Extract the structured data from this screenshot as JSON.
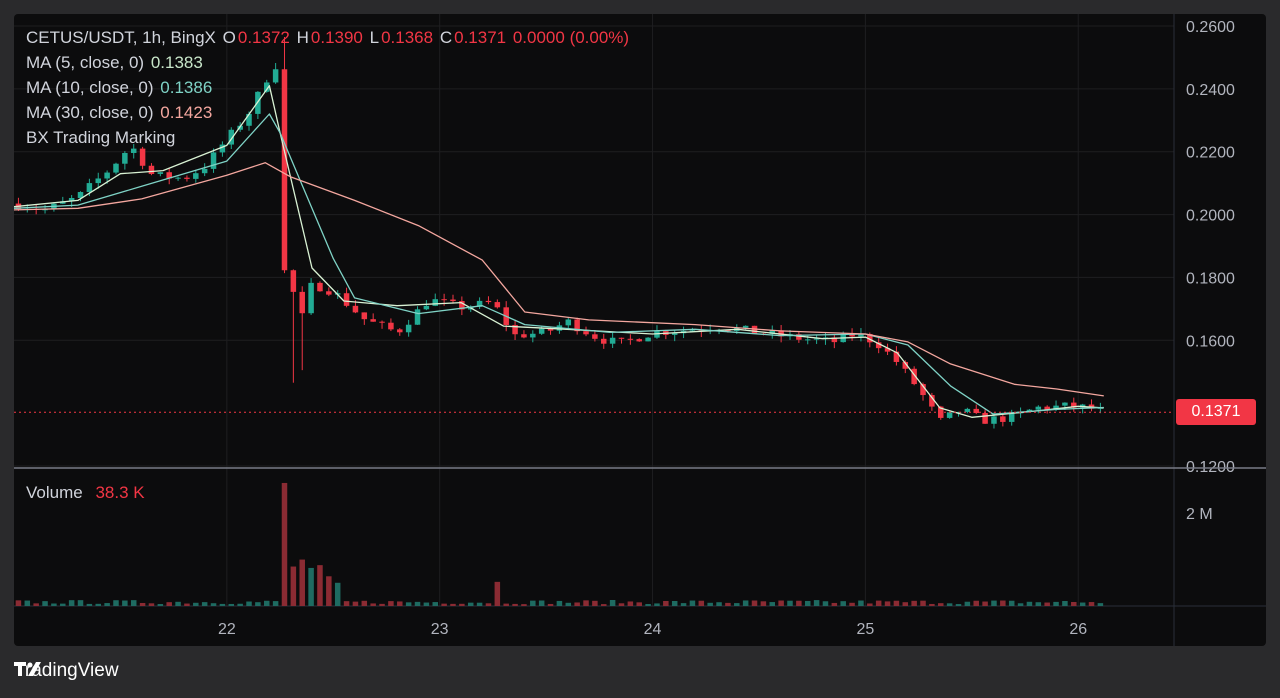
{
  "header": {
    "symbol": "CETUS/USDT, 1h, BingX",
    "o_label": "O",
    "o_value": "0.1372",
    "h_label": "H",
    "h_value": "0.1390",
    "l_label": "L",
    "l_value": "0.1368",
    "c_label": "C",
    "c_value": "0.1371",
    "change": "0.0000 (0.00%)"
  },
  "indicators": [
    {
      "label": "MA (5, close, 0)",
      "value": "0.1383",
      "color": "#c8e6c9"
    },
    {
      "label": "MA (10, close, 0)",
      "value": "0.1386",
      "color": "#7fd3c6"
    },
    {
      "label": "MA (30, close, 0)",
      "value": "0.1423",
      "color": "#f4a79f"
    },
    {
      "label": "BX Trading Marking",
      "value": "",
      "color": "#d1d4dc"
    }
  ],
  "volume_pane": {
    "label": "Volume",
    "value": "38.3 K"
  },
  "last_price": "0.1371",
  "brand": "TradingView",
  "colors": {
    "up": "#22ab94",
    "down": "#f23645",
    "ma5": "#d9f2d4",
    "ma10": "#7fd3c6",
    "ma30": "#f4a79f",
    "grid": "#1e1e20"
  },
  "chart_data": {
    "type": "candlestick",
    "interval": "1h",
    "price_axis": {
      "ticks": [
        0.26,
        0.24,
        0.22,
        0.2,
        0.18,
        0.16,
        0.12
      ],
      "tick_labels": [
        "0.2600",
        "0.2400",
        "0.2200",
        "0.2000",
        "0.1800",
        "0.1600",
        "0.1200"
      ],
      "range": [
        0.12,
        0.26
      ]
    },
    "volume_axis": {
      "ticks": [
        2000000
      ],
      "tick_labels": [
        "2 M"
      ],
      "range": [
        0,
        2800000
      ]
    },
    "x_axis": {
      "day_ticks": [
        22,
        23,
        24,
        25,
        26
      ],
      "tick_labels": [
        "22",
        "23",
        "24",
        "25",
        "26"
      ],
      "start_day": 21.0,
      "end_day": 26.45
    },
    "candle_close_anchors": [
      {
        "t": 21.0,
        "p": 0.2035
      },
      {
        "t": 21.15,
        "p": 0.2015
      },
      {
        "t": 21.3,
        "p": 0.2055
      },
      {
        "t": 21.45,
        "p": 0.2145
      },
      {
        "t": 21.55,
        "p": 0.222
      },
      {
        "t": 21.65,
        "p": 0.2125
      },
      {
        "t": 21.8,
        "p": 0.2115
      },
      {
        "t": 21.9,
        "p": 0.2155
      },
      {
        "t": 22.0,
        "p": 0.224
      },
      {
        "t": 22.1,
        "p": 0.232
      },
      {
        "t": 22.22,
        "p": 0.2475
      },
      {
        "t": 22.25,
        "p": 0.2475
      },
      {
        "t": 22.27,
        "p": 0.182
      },
      {
        "t": 22.3,
        "p": 0.178
      },
      {
        "t": 22.35,
        "p": 0.1665
      },
      {
        "t": 22.4,
        "p": 0.178
      },
      {
        "t": 22.5,
        "p": 0.1755
      },
      {
        "t": 22.65,
        "p": 0.1665
      },
      {
        "t": 22.8,
        "p": 0.1625
      },
      {
        "t": 22.95,
        "p": 0.173
      },
      {
        "t": 23.1,
        "p": 0.1705
      },
      {
        "t": 23.25,
        "p": 0.172
      },
      {
        "t": 23.35,
        "p": 0.1615
      },
      {
        "t": 23.5,
        "p": 0.1625
      },
      {
        "t": 23.6,
        "p": 0.166
      },
      {
        "t": 23.75,
        "p": 0.1605
      },
      {
        "t": 23.85,
        "p": 0.159
      },
      {
        "t": 24.0,
        "p": 0.1625
      },
      {
        "t": 24.2,
        "p": 0.1635
      },
      {
        "t": 24.3,
        "p": 0.1645
      },
      {
        "t": 24.5,
        "p": 0.1625
      },
      {
        "t": 24.7,
        "p": 0.1605
      },
      {
        "t": 24.85,
        "p": 0.1595
      },
      {
        "t": 24.95,
        "p": 0.162
      },
      {
        "t": 25.05,
        "p": 0.1595
      },
      {
        "t": 25.15,
        "p": 0.153
      },
      {
        "t": 25.25,
        "p": 0.1445
      },
      {
        "t": 25.35,
        "p": 0.134
      },
      {
        "t": 25.45,
        "p": 0.138
      },
      {
        "t": 25.55,
        "p": 0.1345
      },
      {
        "t": 25.7,
        "p": 0.1355
      },
      {
        "t": 25.8,
        "p": 0.1385
      },
      {
        "t": 25.95,
        "p": 0.139
      },
      {
        "t": 26.05,
        "p": 0.1385
      },
      {
        "t": 26.12,
        "p": 0.1371
      }
    ],
    "ma_lines": {
      "ma5": [
        [
          21.0,
          0.2025
        ],
        [
          21.3,
          0.2045
        ],
        [
          21.5,
          0.213
        ],
        [
          21.7,
          0.214
        ],
        [
          22.0,
          0.222
        ],
        [
          22.2,
          0.241
        ],
        [
          22.25,
          0.226
        ],
        [
          22.4,
          0.183
        ],
        [
          22.55,
          0.1725
        ],
        [
          22.8,
          0.171
        ],
        [
          23.1,
          0.172
        ],
        [
          23.3,
          0.1645
        ],
        [
          23.6,
          0.1635
        ],
        [
          24.0,
          0.162
        ],
        [
          24.4,
          0.1635
        ],
        [
          24.8,
          0.1605
        ],
        [
          25.0,
          0.161
        ],
        [
          25.15,
          0.156
        ],
        [
          25.35,
          0.1385
        ],
        [
          25.5,
          0.1355
        ],
        [
          25.8,
          0.1375
        ],
        [
          26.0,
          0.139
        ],
        [
          26.12,
          0.1385
        ]
      ],
      "ma10": [
        [
          21.0,
          0.202
        ],
        [
          21.3,
          0.203
        ],
        [
          21.6,
          0.209
        ],
        [
          22.0,
          0.217
        ],
        [
          22.2,
          0.232
        ],
        [
          22.25,
          0.226
        ],
        [
          22.35,
          0.21
        ],
        [
          22.5,
          0.186
        ],
        [
          22.6,
          0.1735
        ],
        [
          22.9,
          0.1685
        ],
        [
          23.2,
          0.171
        ],
        [
          23.4,
          0.165
        ],
        [
          23.8,
          0.1625
        ],
        [
          24.2,
          0.1635
        ],
        [
          24.6,
          0.1615
        ],
        [
          25.0,
          0.162
        ],
        [
          25.2,
          0.1585
        ],
        [
          25.4,
          0.1455
        ],
        [
          25.6,
          0.1365
        ],
        [
          25.9,
          0.138
        ],
        [
          26.12,
          0.1386
        ]
      ],
      "ma30": [
        [
          21.0,
          0.2015
        ],
        [
          21.3,
          0.202
        ],
        [
          21.6,
          0.205
        ],
        [
          22.0,
          0.2125
        ],
        [
          22.18,
          0.2165
        ],
        [
          22.3,
          0.212
        ],
        [
          22.6,
          0.2045
        ],
        [
          22.9,
          0.1965
        ],
        [
          23.2,
          0.1855
        ],
        [
          23.4,
          0.169
        ],
        [
          23.7,
          0.1665
        ],
        [
          24.2,
          0.165
        ],
        [
          24.6,
          0.163
        ],
        [
          25.0,
          0.162
        ],
        [
          25.2,
          0.1595
        ],
        [
          25.4,
          0.1525
        ],
        [
          25.7,
          0.146
        ],
        [
          25.9,
          0.1445
        ],
        [
          26.12,
          0.1423
        ]
      ]
    },
    "volume_spikes": [
      {
        "t": 22.29,
        "v": 2650000,
        "dir": "down"
      },
      {
        "t": 22.33,
        "v": 850000,
        "dir": "down"
      },
      {
        "t": 22.36,
        "v": 1000000,
        "dir": "up"
      },
      {
        "t": 22.4,
        "v": 820000,
        "dir": "up"
      },
      {
        "t": 22.44,
        "v": 880000,
        "dir": "up"
      },
      {
        "t": 22.48,
        "v": 640000,
        "dir": "up"
      },
      {
        "t": 22.52,
        "v": 500000,
        "dir": "down"
      },
      {
        "t": 23.29,
        "v": 520000,
        "dir": "down"
      }
    ]
  }
}
